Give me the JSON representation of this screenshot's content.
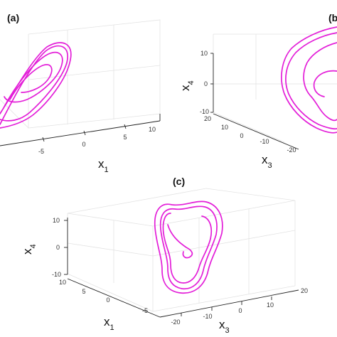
{
  "colors": {
    "trajectory": "#e31ed8",
    "axis": "#222222",
    "grid": "#e3e3e3",
    "background": "#ffffff"
  },
  "chart_data": [
    {
      "panel": "(a)",
      "type": "line3d",
      "visible_axes": {
        "x1": {
          "label_main": "x",
          "label_sub": "1",
          "ticks": [
            "-5",
            "0",
            "5",
            "10"
          ]
        }
      },
      "grid": true
    },
    {
      "panel": "(b)",
      "type": "line3d",
      "visible_axes": {
        "x4": {
          "label_main": "x",
          "label_sub": "4",
          "ticks": [
            "10",
            "0",
            "-10"
          ]
        },
        "x3": {
          "label_main": "x",
          "label_sub": "3",
          "ticks": [
            "20",
            "10",
            "0",
            "-10",
            "-20"
          ]
        }
      },
      "grid": true
    },
    {
      "panel": "(c)",
      "type": "line3d",
      "visible_axes": {
        "x4": {
          "label_main": "x",
          "label_sub": "4",
          "ticks": [
            "10",
            "0",
            "-10"
          ]
        },
        "x1": {
          "label_main": "x",
          "label_sub": "1",
          "ticks": [
            "10",
            "5",
            "0",
            "-5"
          ]
        },
        "x3": {
          "label_main": "x",
          "label_sub": "3",
          "ticks": [
            "-20",
            "-10",
            "0",
            "10",
            "20"
          ]
        }
      },
      "grid": true
    }
  ]
}
